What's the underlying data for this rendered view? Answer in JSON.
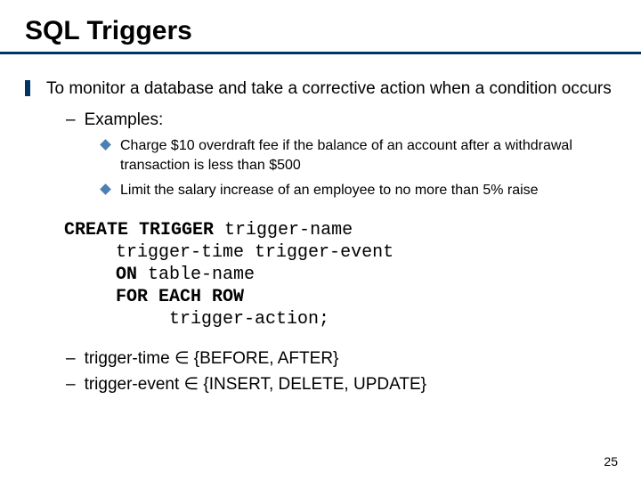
{
  "colors": {
    "underline": "#003366",
    "bullet_l1": "#003366",
    "diamond": "#4d7fb3",
    "background": "#ffffff",
    "text": "#000000"
  },
  "title": "SQL Triggers",
  "l1_text": "To monitor a database and take a corrective action when a condition occurs",
  "examples_label": "Examples:",
  "ex1": "Charge $10 overdraft fee if the balance of an account after a withdrawal transaction is less than $500",
  "ex2": "Limit the salary increase of an employee to no more than 5% raise",
  "code": {
    "kw_create": "CREATE TRIGGER",
    "trig_name": "trigger-name",
    "trig_time": "trigger-time",
    "trig_event": "trigger-event",
    "kw_on": "ON",
    "table_name": "table-name",
    "kw_for": "FOR EACH ROW",
    "trig_action": "trigger-action",
    "semi": ";"
  },
  "note1_a": "trigger-time ",
  "note1_b": " {BEFORE, AFTER}",
  "note2_a": "trigger-event ",
  "note2_b": " {INSERT, DELETE, UPDATE}",
  "elem": "∈",
  "page": "25"
}
